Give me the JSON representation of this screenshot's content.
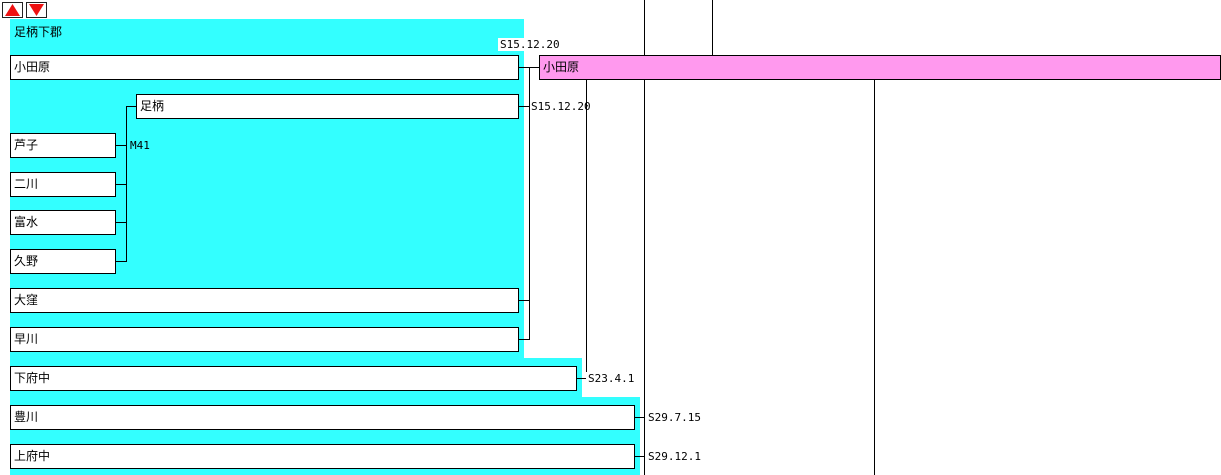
{
  "nav": {
    "up_icon": "triangle-up-icon",
    "down_icon": "triangle-down-icon",
    "icon_color": "#ee1111"
  },
  "district": {
    "name": "足柄下郡",
    "color": "#33ffff"
  },
  "municipalities": {
    "odawara": "小田原",
    "ashigara": "足柄",
    "ashinoko": "芦子",
    "futakawa": "二川",
    "tomimizu": "富水",
    "kuno": "久野",
    "okubo": "大窪",
    "hayakawa": "早川",
    "shimosoga": "下府中",
    "toyokawa": "豊川",
    "kamisoga": "上府中"
  },
  "result": {
    "name": "小田原",
    "color": "#ff99ee"
  },
  "dates": {
    "merge_odawara": "S15.12.20",
    "merge_ashigara": "S15.12.20",
    "ashigara_formed": "M41",
    "shimosoga_merge": "S23.4.1",
    "toyokawa_merge": "S29.7.15",
    "kamisoga_merge": "S29.12.1"
  }
}
